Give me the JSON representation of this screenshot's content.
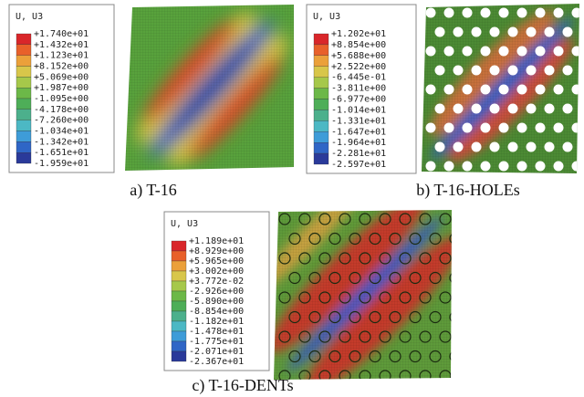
{
  "panels": [
    {
      "legend": {
        "title": "U, U3",
        "labels": [
          "+1.740e+01",
          "+1.432e+01",
          "+1.123e+01",
          "+8.152e+00",
          "+5.069e+00",
          "+1.987e+00",
          "-1.095e+00",
          "-4.178e+00",
          "-7.260e+00",
          "-1.034e+01",
          "-1.342e+01",
          "-1.651e+01",
          "-1.959e+01"
        ]
      },
      "caption": "a) T-16"
    },
    {
      "legend": {
        "title": "U, U3",
        "labels": [
          "+1.202e+01",
          "+8.854e+00",
          "+5.688e+00",
          "+2.522e+00",
          "-6.445e-01",
          "-3.811e+00",
          "-6.977e+00",
          "-1.014e+01",
          "-1.331e+01",
          "-1.647e+01",
          "-1.964e+01",
          "-2.281e+01",
          "-2.597e+01"
        ]
      },
      "caption": "b) T-16-HOLEs"
    },
    {
      "legend": {
        "title": "U, U3",
        "labels": [
          "+1.189e+01",
          "+8.929e+00",
          "+5.965e+00",
          "+3.002e+00",
          "+3.772e-02",
          "-2.926e+00",
          "-5.890e+00",
          "-8.854e+00",
          "-1.182e+01",
          "-1.478e+01",
          "-1.775e+01",
          "-2.071e+01",
          "-2.367e+01"
        ]
      },
      "caption": "c) T-16-DENTs"
    }
  ]
}
